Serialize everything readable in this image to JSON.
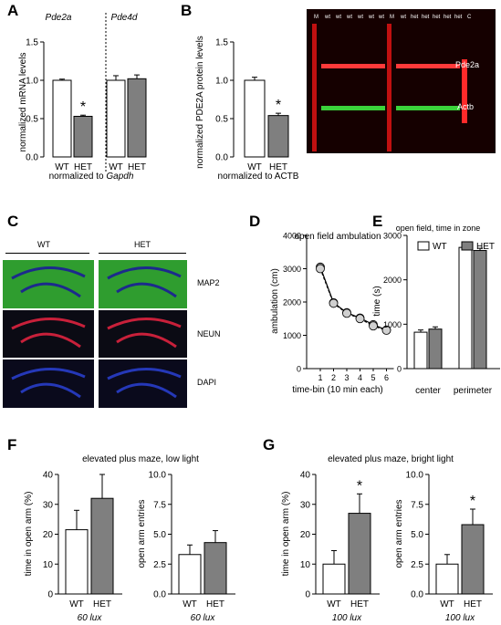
{
  "panels": {
    "A": {
      "label": "A"
    },
    "B": {
      "label": "B"
    },
    "C": {
      "label": "C"
    },
    "D": {
      "label": "D"
    },
    "E": {
      "label": "E"
    },
    "F": {
      "label": "F"
    },
    "G": {
      "label": "G"
    }
  },
  "blot": {
    "lane_labels": [
      "M",
      "wt",
      "wt",
      "wt",
      "wt",
      "wt",
      "wt",
      "M",
      "wt",
      "het",
      "het",
      "het",
      "het",
      "het",
      "C"
    ],
    "band_labels": [
      "Pde2a",
      "Actb"
    ],
    "colors": {
      "pde2a": "#ff3030",
      "actb": "#30d030",
      "marker": "#ff2020",
      "background": "#1a0000"
    }
  },
  "histology": {
    "col_labels": [
      "WT",
      "HET"
    ],
    "row_labels": [
      "MAP2",
      "NEUN",
      "DAPI"
    ],
    "colors": {
      "MAP2": "#2bbf2b",
      "NEUN": "#d01830",
      "DAPI": "#2030c0"
    }
  },
  "chart_data": [
    {
      "id": "A",
      "type": "bar",
      "gene_labels": [
        "Pde2a",
        "Pde4d"
      ],
      "categories": [
        "WT",
        "HET",
        "WT",
        "HET"
      ],
      "values": [
        1.0,
        0.53,
        1.0,
        1.02
      ],
      "errors": [
        0.015,
        0.015,
        0.06,
        0.05
      ],
      "colors": [
        "#ffffff",
        "#7f7f7f",
        "#ffffff",
        "#7f7f7f"
      ],
      "ylabel": "normalized mRNA levels",
      "xlabel_prefix": "normalized to ",
      "xlabel_gene": "Gapdh",
      "ylim": [
        0,
        1.5
      ],
      "yticks": [
        "0.0",
        "0.5",
        "1.0",
        "1.5"
      ],
      "significance": [
        "",
        "*",
        "",
        ""
      ]
    },
    {
      "id": "B",
      "type": "bar",
      "categories": [
        "WT",
        "HET"
      ],
      "values": [
        1.0,
        0.54
      ],
      "errors": [
        0.04,
        0.03
      ],
      "colors": [
        "#ffffff",
        "#7f7f7f"
      ],
      "ylabel": "normalized PDE2A protein levels",
      "xlabel": "normalized to ACTB",
      "ylim": [
        0,
        1.5
      ],
      "yticks": [
        "0.0",
        "0.5",
        "1.0",
        "1.5"
      ],
      "significance": [
        "",
        "*"
      ]
    },
    {
      "id": "D",
      "type": "line",
      "title": "open field ambulation",
      "x": [
        1,
        2,
        3,
        4,
        5,
        6
      ],
      "xticks": [
        "1",
        "2",
        "3",
        "4",
        "5",
        "6"
      ],
      "series": [
        {
          "values": [
            3050,
            1980,
            1680,
            1520,
            1320,
            1160
          ],
          "color": "#7f7f7f"
        },
        {
          "values": [
            3000,
            1960,
            1660,
            1500,
            1280,
            1150
          ],
          "color": "#d0d0d0"
        }
      ],
      "xlabel": "time-bin (10 min each)",
      "ylabel": "ambulation (cm)",
      "ylim": [
        0,
        4000
      ],
      "yticks": [
        "0",
        "1000",
        "2000",
        "3000",
        "4000"
      ]
    },
    {
      "id": "E",
      "type": "bar",
      "title": "open field, time in zone",
      "categories": [
        "center",
        "perimeter"
      ],
      "series": [
        {
          "name": "WT",
          "values": [
            820,
            2730
          ],
          "errors": [
            50,
            60
          ],
          "color": "#ffffff"
        },
        {
          "name": "HET",
          "values": [
            890,
            2660
          ],
          "errors": [
            50,
            50
          ],
          "color": "#7f7f7f"
        }
      ],
      "ylabel": "time (s)",
      "ylim": [
        0,
        3000
      ],
      "yticks": [
        "0",
        "1000",
        "2000",
        "3000"
      ],
      "legend": "top"
    },
    {
      "id": "F1",
      "type": "bar",
      "title": "elevated plus maze, low light",
      "categories": [
        "WT",
        "HET"
      ],
      "values": [
        21.5,
        32.0
      ],
      "errors": [
        6.5,
        8.0
      ],
      "colors": [
        "#ffffff",
        "#7f7f7f"
      ],
      "ylabel": "time in open arm (%)",
      "condition": "60 lux",
      "ylim": [
        0,
        40
      ],
      "yticks": [
        "0",
        "10",
        "20",
        "30",
        "40"
      ],
      "significance": [
        "",
        ""
      ]
    },
    {
      "id": "F2",
      "type": "bar",
      "categories": [
        "WT",
        "HET"
      ],
      "values": [
        3.3,
        4.3
      ],
      "errors": [
        0.8,
        1.0
      ],
      "colors": [
        "#ffffff",
        "#7f7f7f"
      ],
      "ylabel": "open arm entries",
      "condition": "60 lux",
      "ylim": [
        0,
        10
      ],
      "yticks": [
        "0.0",
        "2.5",
        "5.0",
        "7.5",
        "10.0"
      ],
      "significance": [
        "",
        ""
      ]
    },
    {
      "id": "G1",
      "type": "bar",
      "title": "elevated plus maze, bright light",
      "categories": [
        "WT",
        "HET"
      ],
      "values": [
        10.0,
        27.0
      ],
      "errors": [
        4.5,
        6.5
      ],
      "colors": [
        "#ffffff",
        "#7f7f7f"
      ],
      "ylabel": "time in open arm (%)",
      "condition": "100 lux",
      "ylim": [
        0,
        40
      ],
      "yticks": [
        "0",
        "10",
        "20",
        "30",
        "40"
      ],
      "significance": [
        "",
        "*"
      ]
    },
    {
      "id": "G2",
      "type": "bar",
      "categories": [
        "WT",
        "HET"
      ],
      "values": [
        2.5,
        5.8
      ],
      "errors": [
        0.8,
        1.3
      ],
      "colors": [
        "#ffffff",
        "#7f7f7f"
      ],
      "ylabel": "open arm entries",
      "condition": "100 lux",
      "ylim": [
        0,
        10
      ],
      "yticks": [
        "0.0",
        "2.5",
        "5.0",
        "7.5",
        "10.0"
      ],
      "significance": [
        "",
        "*"
      ]
    }
  ]
}
